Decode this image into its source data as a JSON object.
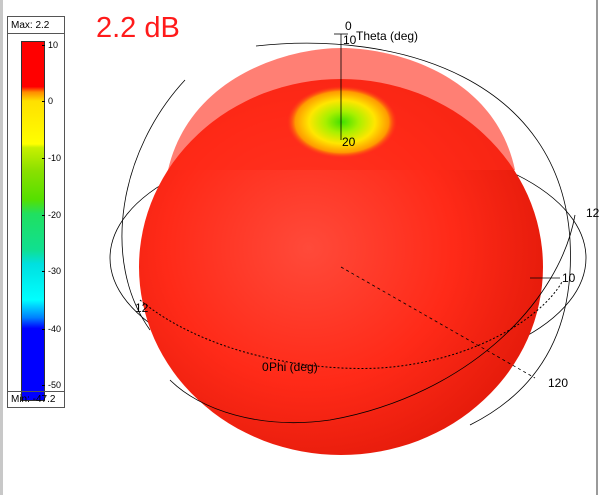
{
  "peak_gain": "2.2 dB",
  "legend": {
    "max_label": "Max: 2.2",
    "min_label": "Min: -47.2",
    "ticks": [
      "10",
      "0",
      "-10",
      "-20",
      "-30",
      "-40",
      "-50"
    ]
  },
  "axes": {
    "theta_zero": "0",
    "theta_label": "Theta (deg)",
    "phi_label": "Phi (deg)",
    "label_120_right": "120",
    "label_12_right": "12",
    "label_10_right": "10",
    "label_12_left": "12",
    "label_20_top": "20",
    "label_0_phi": "0"
  },
  "colors": {
    "pattern": "#ff2a1a",
    "peak_text": "#ff1a1a"
  }
}
